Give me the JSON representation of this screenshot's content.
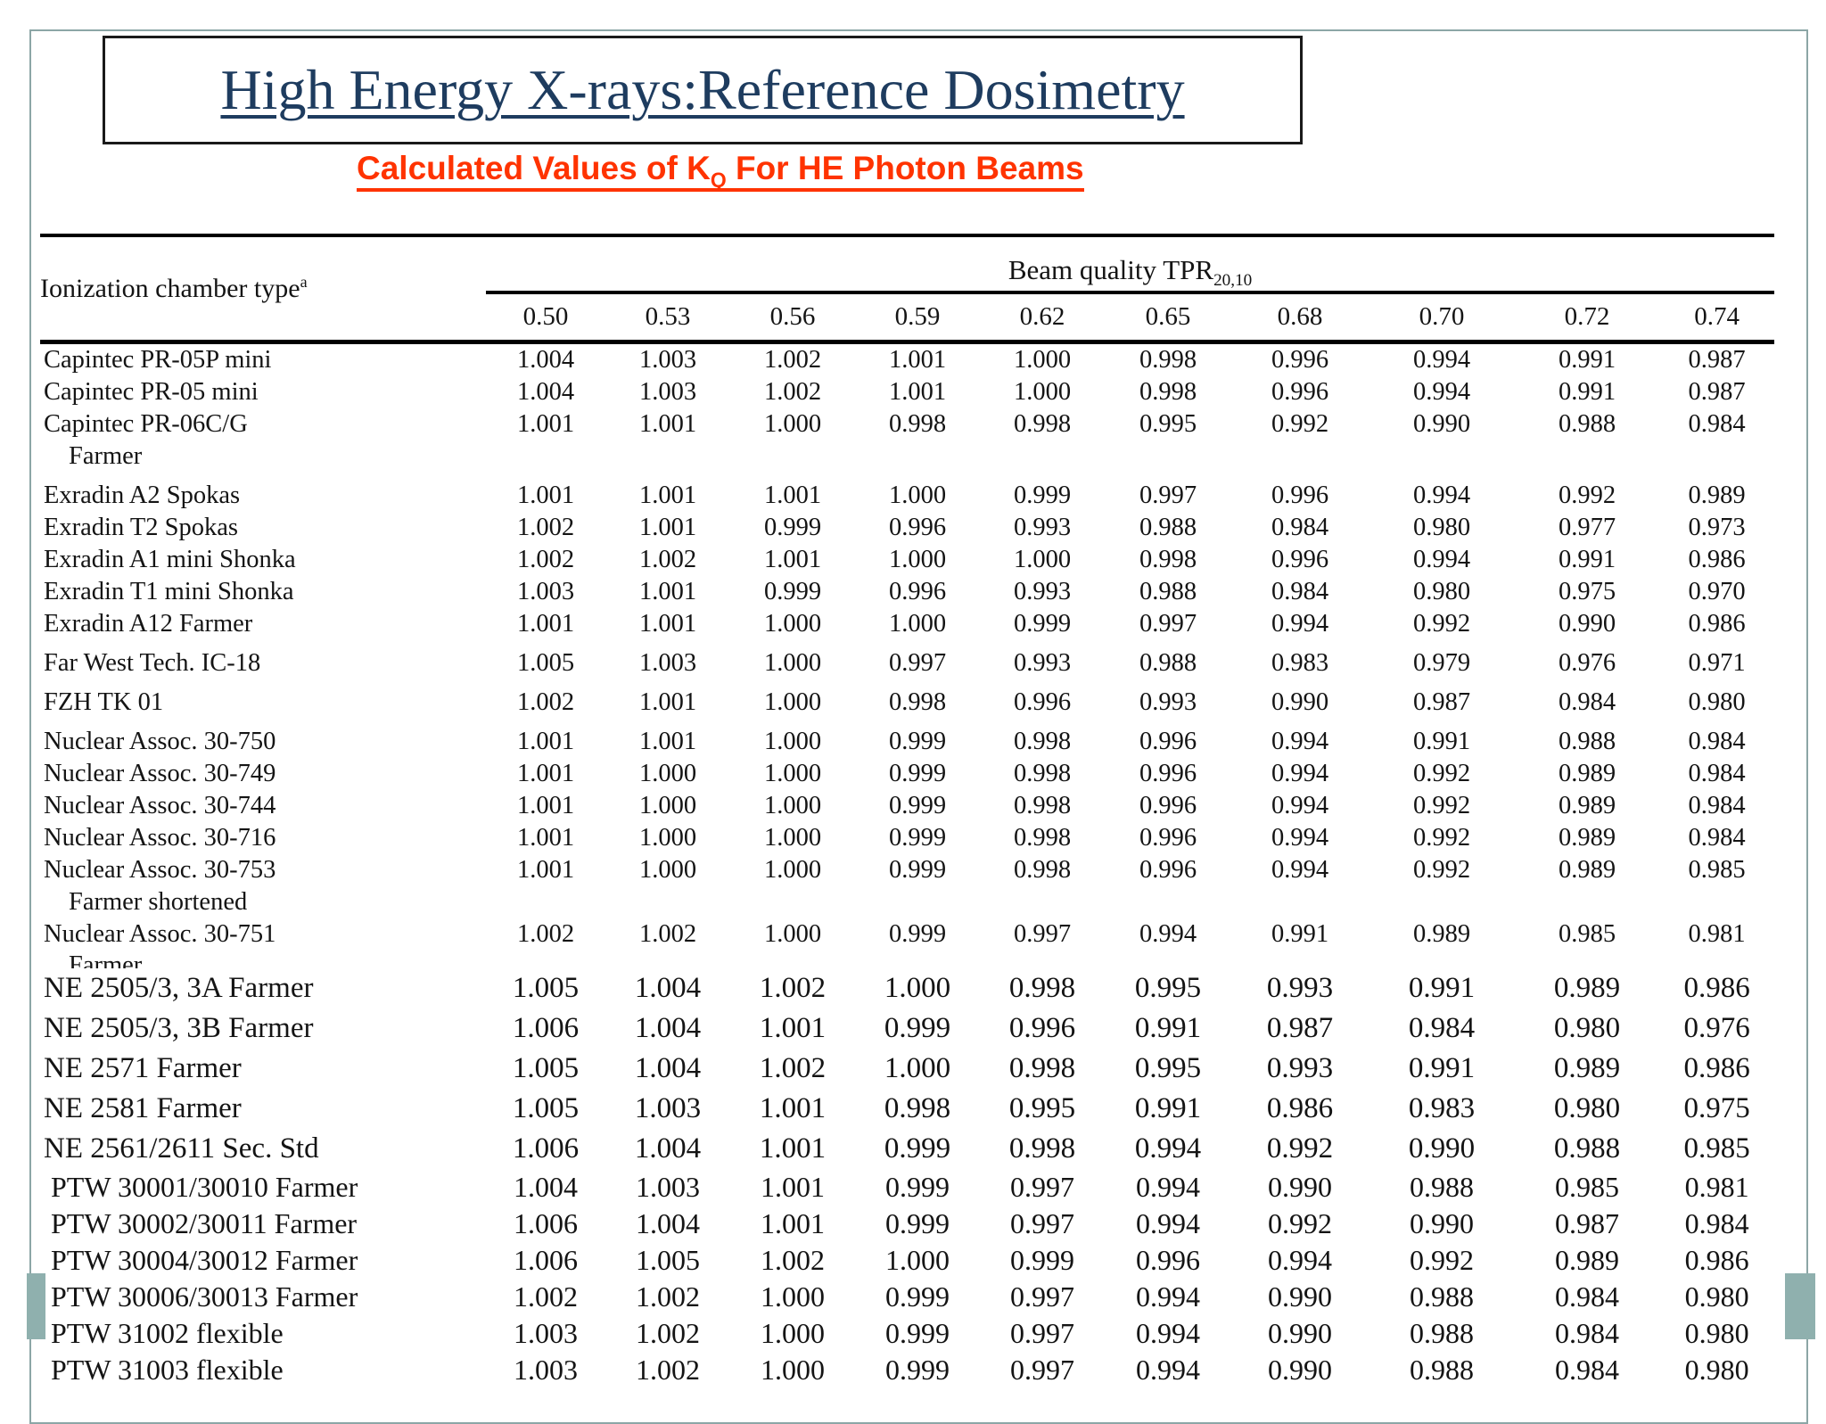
{
  "slide": {
    "title": "High Energy X-rays:Reference Dosimetry",
    "subtitle": {
      "prefix": "Calculated Values of K",
      "sub": "Q",
      "suffix": " For HE Photon Beams"
    }
  },
  "colors": {
    "title_navy": "#1e3c5f",
    "subtitle_red": "#ff3300",
    "frame_teal": "#8ca6a6",
    "accent_teal": "#8fb0ae",
    "table_ink": "#141414"
  },
  "table": {
    "corner_header": {
      "text": "Ionization chamber type",
      "sup": "a"
    },
    "group_header": {
      "text": "Beam quality TPR",
      "sub": "20,10"
    },
    "columns": [
      "0.50",
      "0.53",
      "0.56",
      "0.59",
      "0.62",
      "0.65",
      "0.68",
      "0.70",
      "0.72",
      "0.74"
    ],
    "rows": [
      {
        "label": "Capintec PR-05P mini",
        "type": "data",
        "section": "upper",
        "values": [
          "1.004",
          "1.003",
          "1.002",
          "1.001",
          "1.000",
          "0.998",
          "0.996",
          "0.994",
          "0.991",
          "0.987"
        ]
      },
      {
        "label": "Capintec PR-05 mini",
        "type": "data",
        "section": "upper",
        "values": [
          "1.004",
          "1.003",
          "1.002",
          "1.001",
          "1.000",
          "0.998",
          "0.996",
          "0.994",
          "0.991",
          "0.987"
        ]
      },
      {
        "label": "Capintec PR-06C/G",
        "type": "data",
        "section": "upper",
        "values": [
          "1.001",
          "1.001",
          "1.000",
          "0.998",
          "0.998",
          "0.995",
          "0.992",
          "0.990",
          "0.988",
          "0.984"
        ]
      },
      {
        "label": "Farmer",
        "type": "continuation",
        "section": "upper"
      },
      {
        "label": "Exradin A2 Spokas",
        "type": "data",
        "section": "upper",
        "group_start": true,
        "values": [
          "1.001",
          "1.001",
          "1.001",
          "1.000",
          "0.999",
          "0.997",
          "0.996",
          "0.994",
          "0.992",
          "0.989"
        ]
      },
      {
        "label": "Exradin T2 Spokas",
        "type": "data",
        "section": "upper",
        "values": [
          "1.002",
          "1.001",
          "0.999",
          "0.996",
          "0.993",
          "0.988",
          "0.984",
          "0.980",
          "0.977",
          "0.973"
        ]
      },
      {
        "label": "Exradin A1 mini Shonka",
        "type": "data",
        "section": "upper",
        "values": [
          "1.002",
          "1.002",
          "1.001",
          "1.000",
          "1.000",
          "0.998",
          "0.996",
          "0.994",
          "0.991",
          "0.986"
        ]
      },
      {
        "label": "Exradin T1 mini Shonka",
        "type": "data",
        "section": "upper",
        "values": [
          "1.003",
          "1.001",
          "0.999",
          "0.996",
          "0.993",
          "0.988",
          "0.984",
          "0.980",
          "0.975",
          "0.970"
        ]
      },
      {
        "label": "Exradin A12 Farmer",
        "type": "data",
        "section": "upper",
        "values": [
          "1.001",
          "1.001",
          "1.000",
          "1.000",
          "0.999",
          "0.997",
          "0.994",
          "0.992",
          "0.990",
          "0.986"
        ]
      },
      {
        "label": "Far West Tech. IC-18",
        "type": "data",
        "section": "upper",
        "group_start": true,
        "values": [
          "1.005",
          "1.003",
          "1.000",
          "0.997",
          "0.993",
          "0.988",
          "0.983",
          "0.979",
          "0.976",
          "0.971"
        ]
      },
      {
        "label": "FZH TK 01",
        "type": "data",
        "section": "upper",
        "group_start": true,
        "values": [
          "1.002",
          "1.001",
          "1.000",
          "0.998",
          "0.996",
          "0.993",
          "0.990",
          "0.987",
          "0.984",
          "0.980"
        ]
      },
      {
        "label": "Nuclear Assoc. 30-750",
        "type": "data",
        "section": "upper",
        "group_start": true,
        "values": [
          "1.001",
          "1.001",
          "1.000",
          "0.999",
          "0.998",
          "0.996",
          "0.994",
          "0.991",
          "0.988",
          "0.984"
        ]
      },
      {
        "label": "Nuclear Assoc. 30-749",
        "type": "data",
        "section": "upper",
        "values": [
          "1.001",
          "1.000",
          "1.000",
          "0.999",
          "0.998",
          "0.996",
          "0.994",
          "0.992",
          "0.989",
          "0.984"
        ]
      },
      {
        "label": "Nuclear Assoc. 30-744",
        "type": "data",
        "section": "upper",
        "values": [
          "1.001",
          "1.000",
          "1.000",
          "0.999",
          "0.998",
          "0.996",
          "0.994",
          "0.992",
          "0.989",
          "0.984"
        ]
      },
      {
        "label": "Nuclear Assoc. 30-716",
        "type": "data",
        "section": "upper",
        "values": [
          "1.001",
          "1.000",
          "1.000",
          "0.999",
          "0.998",
          "0.996",
          "0.994",
          "0.992",
          "0.989",
          "0.984"
        ]
      },
      {
        "label": "Nuclear Assoc. 30-753",
        "type": "data",
        "section": "upper",
        "values": [
          "1.001",
          "1.000",
          "1.000",
          "0.999",
          "0.998",
          "0.996",
          "0.994",
          "0.992",
          "0.989",
          "0.985"
        ]
      },
      {
        "label": "Farmer shortened",
        "type": "continuation",
        "section": "upper"
      },
      {
        "label": "Nuclear Assoc. 30-751",
        "type": "data",
        "section": "upper",
        "values": [
          "1.002",
          "1.002",
          "1.000",
          "0.999",
          "0.997",
          "0.994",
          "0.991",
          "0.989",
          "0.985",
          "0.981"
        ]
      },
      {
        "label": "Farmer",
        "type": "continuation",
        "section": "upper",
        "clipped": true
      },
      {
        "label": "NE 2505/3, 3A Farmer",
        "type": "data",
        "section": "ne",
        "values": [
          "1.005",
          "1.004",
          "1.002",
          "1.000",
          "0.998",
          "0.995",
          "0.993",
          "0.991",
          "0.989",
          "0.986"
        ]
      },
      {
        "label": "NE 2505/3, 3B Farmer",
        "type": "data",
        "section": "ne",
        "values": [
          "1.006",
          "1.004",
          "1.001",
          "0.999",
          "0.996",
          "0.991",
          "0.987",
          "0.984",
          "0.980",
          "0.976"
        ]
      },
      {
        "label": "NE 2571 Farmer",
        "type": "data",
        "section": "ne",
        "values": [
          "1.005",
          "1.004",
          "1.002",
          "1.000",
          "0.998",
          "0.995",
          "0.993",
          "0.991",
          "0.989",
          "0.986"
        ]
      },
      {
        "label": "NE 2581 Farmer",
        "type": "data",
        "section": "ne",
        "values": [
          "1.005",
          "1.003",
          "1.001",
          "0.998",
          "0.995",
          "0.991",
          "0.986",
          "0.983",
          "0.980",
          "0.975"
        ]
      },
      {
        "label": "NE 2561/2611 Sec. Std",
        "type": "data",
        "section": "ne",
        "values": [
          "1.006",
          "1.004",
          "1.001",
          "0.999",
          "0.998",
          "0.994",
          "0.992",
          "0.990",
          "0.988",
          "0.985"
        ]
      },
      {
        "label": "PTW 30001/30010 Farmer",
        "type": "data",
        "section": "ptw",
        "values": [
          "1.004",
          "1.003",
          "1.001",
          "0.999",
          "0.997",
          "0.994",
          "0.990",
          "0.988",
          "0.985",
          "0.981"
        ]
      },
      {
        "label": "PTW 30002/30011 Farmer",
        "type": "data",
        "section": "ptw",
        "values": [
          "1.006",
          "1.004",
          "1.001",
          "0.999",
          "0.997",
          "0.994",
          "0.992",
          "0.990",
          "0.987",
          "0.984"
        ]
      },
      {
        "label": "PTW 30004/30012 Farmer",
        "type": "data",
        "section": "ptw",
        "values": [
          "1.006",
          "1.005",
          "1.002",
          "1.000",
          "0.999",
          "0.996",
          "0.994",
          "0.992",
          "0.989",
          "0.986"
        ]
      },
      {
        "label": "PTW 30006/30013 Farmer",
        "type": "data",
        "section": "ptw",
        "values": [
          "1.002",
          "1.002",
          "1.000",
          "0.999",
          "0.997",
          "0.994",
          "0.990",
          "0.988",
          "0.984",
          "0.980"
        ]
      },
      {
        "label": "PTW 31002 flexible",
        "type": "data",
        "section": "ptw",
        "values": [
          "1.003",
          "1.002",
          "1.000",
          "0.999",
          "0.997",
          "0.994",
          "0.990",
          "0.988",
          "0.984",
          "0.980"
        ]
      },
      {
        "label": "PTW 31003 flexible",
        "type": "data",
        "section": "ptw",
        "values": [
          "1.003",
          "1.002",
          "1.000",
          "0.999",
          "0.997",
          "0.994",
          "0.990",
          "0.988",
          "0.984",
          "0.980"
        ]
      }
    ]
  }
}
